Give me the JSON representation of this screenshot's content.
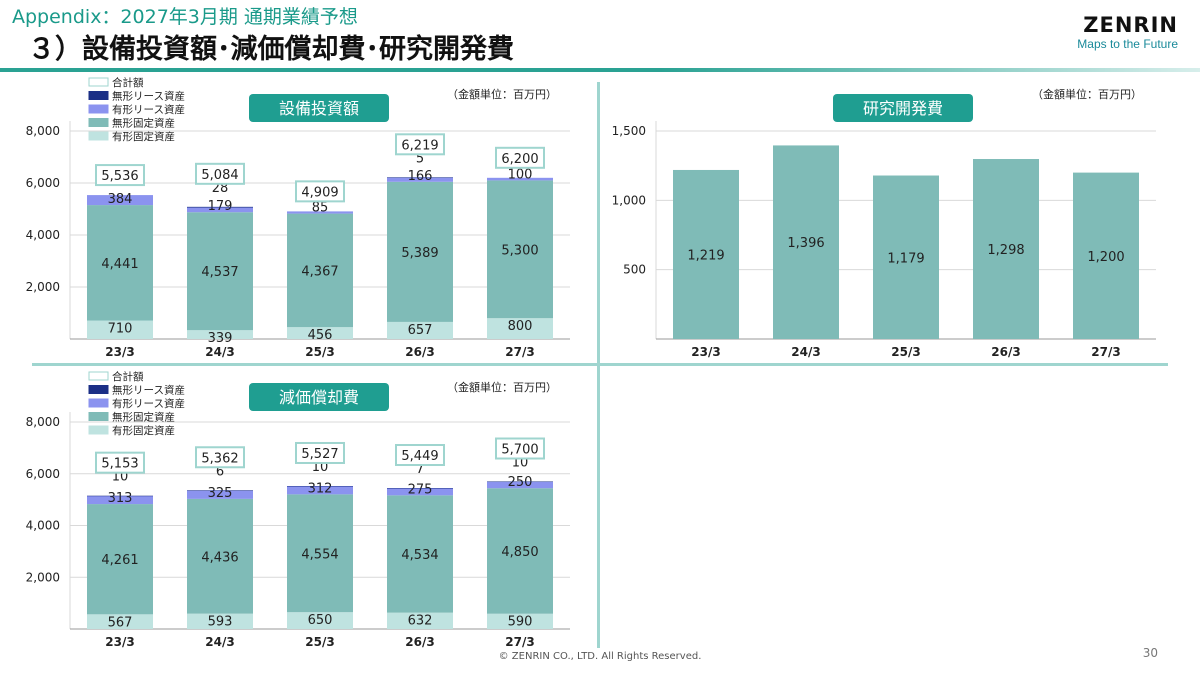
{
  "header": {
    "subtitle": "Appendix：2027年3月期 通期業績予想",
    "title": "３）設備投資額･減価償却費･研究開発費",
    "logo_name": "ZENRIN",
    "logo_tagline": "Maps to the Future"
  },
  "footer": {
    "copyright": "© ZENRIN CO., LTD. All Rights Reserved.",
    "page_number": "30"
  },
  "colors": {
    "accent": "#2aa293",
    "badge": "#1f9e91",
    "total_box_border": "#9fd5cf",
    "intangible_lease": "#1b2f86",
    "tangible_lease": "#8b93ef",
    "intangible_fixed": "#7fbbb7",
    "tangible_fixed": "#bfe3e0",
    "rd_bar": "#7fbbb7",
    "grid": "#d9d9d9"
  },
  "chart_data": [
    {
      "id": "capex",
      "type": "bar",
      "stacked": true,
      "title": "設備投資額",
      "unit_note": "（金額単位：百万円）",
      "categories": [
        "23/3",
        "24/3",
        "25/3",
        "26/3",
        "27/3"
      ],
      "ylim": [
        0,
        8000
      ],
      "yticks": [
        2000,
        4000,
        6000,
        8000
      ],
      "ytick_labels": [
        "2,000",
        "4,000",
        "6,000",
        "8,000"
      ],
      "grid": true,
      "legend_position": "top-left",
      "legend": [
        "合計額",
        "無形リース資産",
        "有形リース資産",
        "無形固定資産",
        "有形固定資産"
      ],
      "series": [
        {
          "name": "有形固定資産",
          "values": [
            710,
            339,
            456,
            657,
            800
          ],
          "labels": [
            "710",
            "339",
            "456",
            "657",
            "800"
          ]
        },
        {
          "name": "無形固定資産",
          "values": [
            4441,
            4537,
            4367,
            5389,
            5300
          ],
          "labels": [
            "4,441",
            "4,537",
            "4,367",
            "5,389",
            "5,300"
          ]
        },
        {
          "name": "有形リース資産",
          "values": [
            384,
            179,
            85,
            166,
            100
          ],
          "labels": [
            "384",
            "179",
            "85",
            "166",
            "100"
          ]
        },
        {
          "name": "無形リース資産",
          "values": [
            0,
            28,
            0,
            5,
            0
          ],
          "labels": [
            "",
            "28",
            "",
            "5",
            ""
          ]
        }
      ],
      "totals": [
        5536,
        5084,
        4909,
        6219,
        6200
      ],
      "total_labels": [
        "5,536",
        "5,084",
        "4,909",
        "6,219",
        "6,200"
      ]
    },
    {
      "id": "rnd",
      "type": "bar",
      "title": "研究開発費",
      "unit_note": "（金額単位：百万円）",
      "categories": [
        "23/3",
        "24/3",
        "25/3",
        "26/3",
        "27/3"
      ],
      "ylim": [
        0,
        1500
      ],
      "yticks": [
        500,
        1000,
        1500
      ],
      "ytick_labels": [
        "500",
        "1,000",
        "1,500"
      ],
      "grid": true,
      "values": [
        1219,
        1396,
        1179,
        1298,
        1200
      ],
      "labels": [
        "1,219",
        "1,396",
        "1,179",
        "1,298",
        "1,200"
      ]
    },
    {
      "id": "depreciation",
      "type": "bar",
      "stacked": true,
      "title": "減価償却費",
      "unit_note": "（金額単位：百万円）",
      "categories": [
        "23/3",
        "24/3",
        "25/3",
        "26/3",
        "27/3"
      ],
      "ylim": [
        0,
        8000
      ],
      "yticks": [
        2000,
        4000,
        6000,
        8000
      ],
      "ytick_labels": [
        "2,000",
        "4,000",
        "6,000",
        "8,000"
      ],
      "grid": true,
      "legend_position": "top-left",
      "legend": [
        "合計額",
        "無形リース資産",
        "有形リース資産",
        "無形固定資産",
        "有形固定資産"
      ],
      "series": [
        {
          "name": "有形固定資産",
          "values": [
            567,
            593,
            650,
            632,
            590
          ],
          "labels": [
            "567",
            "593",
            "650",
            "632",
            "590"
          ]
        },
        {
          "name": "無形固定資産",
          "values": [
            4261,
            4436,
            4554,
            4534,
            4850
          ],
          "labels": [
            "4,261",
            "4,436",
            "4,554",
            "4,534",
            "4,850"
          ]
        },
        {
          "name": "有形リース資産",
          "values": [
            313,
            325,
            312,
            275,
            250
          ],
          "labels": [
            "313",
            "325",
            "312",
            "275",
            "250"
          ]
        },
        {
          "name": "無形リース資産",
          "values": [
            10,
            6,
            10,
            7,
            10
          ],
          "labels": [
            "10",
            "6",
            "10",
            "7",
            "10"
          ]
        }
      ],
      "totals": [
        5153,
        5362,
        5527,
        5449,
        5700
      ],
      "total_labels": [
        "5,153",
        "5,362",
        "5,527",
        "5,449",
        "5,700"
      ]
    }
  ]
}
